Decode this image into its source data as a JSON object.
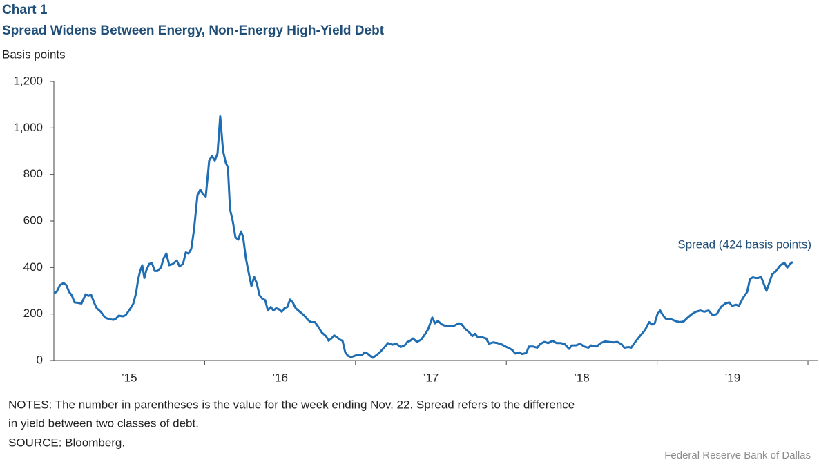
{
  "chart_data": {
    "type": "line",
    "title": "Chart 1",
    "subtitle": "Spread Widens Between Energy,  Non-Energy High-Yield Debt",
    "y_label": "Basis points",
    "annotation": "Spread (424 basis points)",
    "notes": [
      "NOTES: The number in parentheses is the value for the week ending Nov. 22. Spread refers to the difference",
      "in yield between two classes of debt."
    ],
    "source": "SOURCE:  Bloomberg.",
    "credit": "Federal Reserve Bank of Dallas",
    "xlim": [
      2015,
      2020.064
    ],
    "xticks": [
      {
        "value": 2015.5,
        "label": "’15"
      },
      {
        "value": 2016.5,
        "label": "’16"
      },
      {
        "value": 2017.5,
        "label": "’17"
      },
      {
        "value": 2018.5,
        "label": "’18"
      },
      {
        "value": 2019.5,
        "label": "’19"
      }
    ],
    "xtick_marks": [
      2016,
      2017,
      2018,
      2019,
      2020
    ],
    "ylim": [
      0,
      1200
    ],
    "yticks": [
      0,
      200,
      400,
      600,
      800,
      {
        "value": 1000,
        "label": "1,000"
      },
      {
        "value": 1200,
        "label": "1,200"
      }
    ],
    "x": [
      2015.0,
      2015.018,
      2015.041,
      2015.064,
      2015.082,
      2015.101,
      2015.119,
      2015.137,
      2015.16,
      2015.183,
      2015.211,
      2015.229,
      2015.247,
      2015.266,
      2015.284,
      2015.311,
      2015.339,
      2015.366,
      2015.394,
      2015.412,
      2015.43,
      2015.458,
      2015.476,
      2015.504,
      2015.527,
      2015.545,
      2015.559,
      2015.572,
      2015.586,
      2015.6,
      2015.614,
      2015.632,
      2015.65,
      2015.669,
      2015.687,
      2015.71,
      2015.728,
      2015.746,
      2015.765,
      2015.788,
      2015.815,
      2015.833,
      2015.856,
      2015.875,
      2015.893,
      2015.911,
      2015.929,
      2015.952,
      2015.971,
      2015.989,
      2016.007,
      2016.03,
      2016.049,
      2016.067,
      2016.085,
      2016.103,
      2016.122,
      2016.14,
      2016.154,
      2016.168,
      2016.186,
      2016.204,
      2016.223,
      2016.241,
      2016.255,
      2016.273,
      2016.291,
      2016.31,
      2016.328,
      2016.346,
      2016.364,
      2016.383,
      2016.401,
      2016.419,
      2016.438,
      2016.456,
      2016.474,
      2016.493,
      2016.511,
      2016.529,
      2016.548,
      2016.566,
      2016.584,
      2016.603,
      2016.63,
      2016.658,
      2016.685,
      2016.703,
      2016.731,
      2016.758,
      2016.777,
      2016.804,
      2016.822,
      2016.841,
      2016.859,
      2016.877,
      2016.896,
      2016.914,
      2016.932,
      2016.951,
      2016.969,
      2016.987,
      2017.015,
      2017.042,
      2017.06,
      2017.079,
      2017.097,
      2017.115,
      2017.143,
      2017.161,
      2017.189,
      2017.216,
      2017.244,
      2017.271,
      2017.299,
      2017.326,
      2017.344,
      2017.363,
      2017.381,
      2017.408,
      2017.436,
      2017.463,
      2017.482,
      2017.509,
      2017.527,
      2017.546,
      2017.573,
      2017.601,
      2017.628,
      2017.656,
      2017.683,
      2017.701,
      2017.729,
      2017.756,
      2017.775,
      2017.793,
      2017.811,
      2017.839,
      2017.866,
      2017.885,
      2017.912,
      2017.94,
      2017.967,
      2017.995,
      2018.022,
      2018.04,
      2018.059,
      2018.086,
      2018.104,
      2018.132,
      2018.15,
      2018.178,
      2018.205,
      2018.223,
      2018.251,
      2018.278,
      2018.306,
      2018.333,
      2018.361,
      2018.388,
      2018.416,
      2018.434,
      2018.462,
      2018.489,
      2018.516,
      2018.544,
      2018.562,
      2018.599,
      2018.626,
      2018.654,
      2018.681,
      2018.709,
      2018.736,
      2018.764,
      2018.782,
      2018.81,
      2018.828,
      2018.855,
      2018.892,
      2018.919,
      2018.947,
      2018.965,
      2018.984,
      2019.002,
      2019.02,
      2019.038,
      2019.057,
      2019.093,
      2019.121,
      2019.148,
      2019.176,
      2019.203,
      2019.231,
      2019.258,
      2019.286,
      2019.313,
      2019.341,
      2019.368,
      2019.396,
      2019.423,
      2019.451,
      2019.478,
      2019.496,
      2019.524,
      2019.542,
      2019.57,
      2019.597,
      2019.615,
      2019.634,
      2019.652,
      2019.67,
      2019.689,
      2019.707,
      2019.725,
      2019.744,
      2019.762,
      2019.789,
      2019.817,
      2019.844,
      2019.863,
      2019.881,
      2019.899
    ],
    "series": [
      {
        "color": "#1f6db3",
        "values": [
          290,
          295,
          325,
          333,
          325,
          295,
          280,
          250,
          248,
          245,
          285,
          278,
          283,
          250,
          225,
          210,
          185,
          178,
          175,
          180,
          193,
          190,
          195,
          220,
          245,
          290,
          350,
          385,
          410,
          355,
          390,
          415,
          420,
          385,
          385,
          400,
          440,
          460,
          410,
          415,
          430,
          405,
          415,
          465,
          460,
          480,
          560,
          710,
          735,
          715,
          705,
          860,
          880,
          860,
          890,
          1050,
          900,
          850,
          830,
          650,
          600,
          530,
          520,
          555,
          530,
          440,
          380,
          320,
          360,
          330,
          280,
          265,
          260,
          215,
          230,
          215,
          225,
          220,
          210,
          225,
          230,
          262,
          250,
          225,
          210,
          195,
          175,
          165,
          165,
          140,
          120,
          105,
          85,
          95,
          108,
          100,
          90,
          85,
          35,
          20,
          15,
          18,
          25,
          22,
          35,
          30,
          20,
          12,
          25,
          35,
          55,
          75,
          68,
          72,
          58,
          65,
          80,
          85,
          95,
          80,
          90,
          115,
          135,
          185,
          160,
          170,
          155,
          148,
          148,
          150,
          160,
          158,
          135,
          120,
          105,
          115,
          100,
          100,
          95,
          72,
          78,
          75,
          70,
          60,
          52,
          45,
          30,
          35,
          28,
          32,
          60,
          60,
          55,
          70,
          80,
          75,
          85,
          75,
          75,
          70,
          50,
          65,
          65,
          72,
          60,
          55,
          65,
          60,
          75,
          82,
          80,
          78,
          80,
          70,
          55,
          58,
          55,
          80,
          110,
          130,
          165,
          155,
          160,
          200,
          215,
          195,
          180,
          178,
          170,
          165,
          168,
          185,
          200,
          210,
          215,
          210,
          215,
          195,
          200,
          230,
          245,
          250,
          235,
          240,
          235,
          270,
          295,
          350,
          358,
          355,
          355,
          360,
          330,
          300,
          335,
          370,
          385,
          410,
          420,
          400,
          415,
          424
        ]
      }
    ]
  }
}
